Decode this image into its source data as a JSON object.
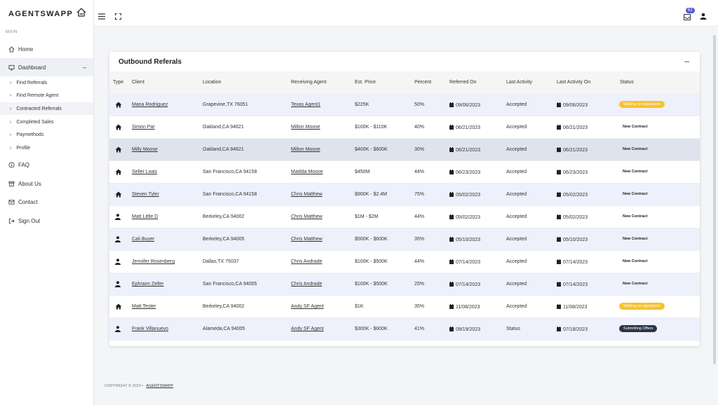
{
  "brand": {
    "name": "AGENTSWAPP"
  },
  "sidebar": {
    "section": "MAIN",
    "home": "Home",
    "dashboard": "Dashboard",
    "sub": [
      "Find Referrals",
      "Find Remote Agent",
      "Contracted Referrals",
      "Completed Sales",
      "Paymethods",
      "Profile"
    ],
    "faq": "FAQ",
    "about": "About Us",
    "contact": "Contact",
    "signout": "Sign Out"
  },
  "topbar": {
    "notifications": "62"
  },
  "card": {
    "title": "Outbound Referals"
  },
  "table": {
    "headers": [
      "Type",
      "Client",
      "Location",
      "Receiving Agent",
      "Est. Price",
      "Percent",
      "Referred On",
      "Last Activity",
      "Last Activity On",
      "Status"
    ],
    "rows": [
      {
        "type": "home",
        "client": "Maria Rodriguez",
        "location": "Grapevine,TX 76051",
        "agent": "Texas Agent1",
        "price": "$225K",
        "percent": "50%",
        "referred": "09/06/2023",
        "activity": "Accepted",
        "activity_on": "09/06/2023",
        "status": "Waiting on signatures",
        "status_style": "yellow"
      },
      {
        "type": "home",
        "client": "Simon Par",
        "location": "Oakland,CA 94621",
        "agent": "Milton Moose",
        "price": "$100K - $110K",
        "percent": "40%",
        "referred": "06/21/2023",
        "activity": "Accepted",
        "activity_on": "06/21/2023",
        "status": "New Contract",
        "status_style": "plain"
      },
      {
        "type": "home",
        "client": "Milly Moose",
        "location": "Oakland,CA 94621",
        "agent": "Milton Moose",
        "price": "$400K - $600K",
        "percent": "30%",
        "referred": "06/21/2023",
        "activity": "Accepted",
        "activity_on": "06/21/2023",
        "status": "New Contract",
        "status_style": "plain"
      },
      {
        "type": "home",
        "client": "Seller Lwas",
        "location": "San Francisco,CA 94158",
        "agent": "Matilda Moose",
        "price": "$450M",
        "percent": "44%",
        "referred": "06/23/2023",
        "activity": "Accepted",
        "activity_on": "06/23/2023",
        "status": "New Contract",
        "status_style": "plain"
      },
      {
        "type": "home",
        "client": "Steven Tyler",
        "location": "San Francisco,CA 94158",
        "agent": "Chris Matthew",
        "price": "$900K - $2.4M",
        "percent": "75%",
        "referred": "05/02/2023",
        "activity": "Accepted",
        "activity_on": "05/02/2023",
        "status": "New Contract",
        "status_style": "plain"
      },
      {
        "type": "person",
        "client": "Matt Little D",
        "location": "Berkeley,CA 94002",
        "agent": "Chris Matthew",
        "price": "$1M - $2M",
        "percent": "44%",
        "referred": "05/02/2023",
        "activity": "Accepted",
        "activity_on": "05/02/2023",
        "status": "New Contract",
        "status_style": "plain"
      },
      {
        "type": "person",
        "client": "Cali Buyer",
        "location": "Berkeley,CA 94005",
        "agent": "Chris Matthew",
        "price": "$500K - $600K",
        "percent": "35%",
        "referred": "05/10/2023",
        "activity": "Accepted",
        "activity_on": "05/10/2023",
        "status": "New Contract",
        "status_style": "plain"
      },
      {
        "type": "person",
        "client": "Jennifer Rosenberg",
        "location": "Dallas,TX 75037",
        "agent": "Chris Andrade",
        "price": "$100K - $500K",
        "percent": "44%",
        "referred": "07/14/2023",
        "activity": "Accepted",
        "activity_on": "07/14/2023",
        "status": "New Contract",
        "status_style": "plain"
      },
      {
        "type": "person",
        "client": "Ephraim Zeller",
        "location": "San Francisco,CA 94005",
        "agent": "Chris Andrade",
        "price": "$100K - $500K",
        "percent": "25%",
        "referred": "07/14/2023",
        "activity": "Accepted",
        "activity_on": "07/14/2023",
        "status": "New Contract",
        "status_style": "plain"
      },
      {
        "type": "home",
        "client": "Matt Tester",
        "location": "Berkeley,CA 94002",
        "agent": "Andy SF Agent",
        "price": "$1K",
        "percent": "35%",
        "referred": "11/08/2023",
        "activity": "Accepted",
        "activity_on": "11/08/2023",
        "status": "Waiting on signatures",
        "status_style": "yellow"
      },
      {
        "type": "person",
        "client": "Frank Villanuevo",
        "location": "Alameda,CA 94005",
        "agent": "Andy SF Agent",
        "price": "$300K - $600K",
        "percent": "41%",
        "referred": "09/19/2023",
        "activity": "Status",
        "activity_on": "07/18/2023",
        "status": "Submitting Offers",
        "status_style": "dark"
      }
    ]
  },
  "footer": {
    "copyright": "COPYRIGHT © 2023  •",
    "brand": "AGENTSWAPP"
  },
  "colors": {
    "accent": "#4b5bd6",
    "yellow_pill": "#f7c22e",
    "dark_pill": "#2b3447",
    "row_alt": "#eef0fb"
  }
}
